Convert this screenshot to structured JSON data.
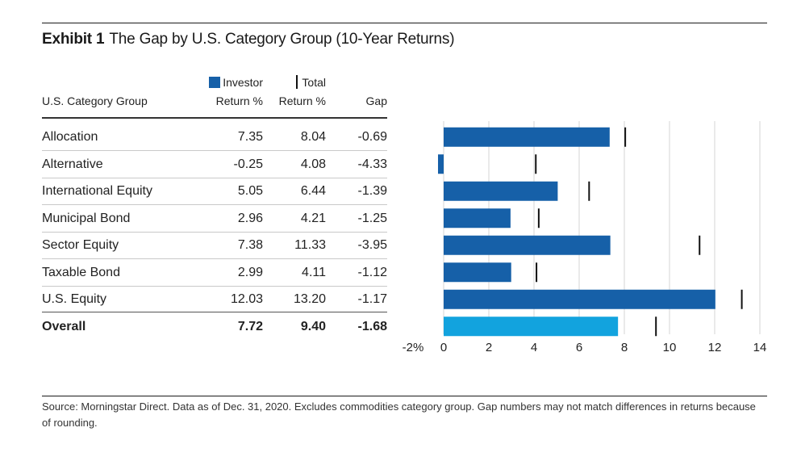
{
  "title": {
    "exhibit": "Exhibit 1",
    "text": "The Gap by U.S. Category Group (10-Year Returns)"
  },
  "columns": {
    "category": "U.S. Category Group",
    "investor_line1": "Investor",
    "investor_line2": "Return %",
    "total_line1": "Total",
    "total_line2": "Return %",
    "gap": "Gap"
  },
  "rows": [
    {
      "name": "Allocation",
      "investor": "7.35",
      "total": "8.04",
      "gap": "-0.69"
    },
    {
      "name": "Alternative",
      "investor": "-0.25",
      "total": "4.08",
      "gap": "-4.33"
    },
    {
      "name": "International Equity",
      "investor": "5.05",
      "total": "6.44",
      "gap": "-1.39"
    },
    {
      "name": "Municipal Bond",
      "investor": "2.96",
      "total": "4.21",
      "gap": "-1.25"
    },
    {
      "name": "Sector Equity",
      "investor": "7.38",
      "total": "11.33",
      "gap": "-3.95"
    },
    {
      "name": "Taxable Bond",
      "investor": "2.99",
      "total": "4.11",
      "gap": "-1.12"
    },
    {
      "name": "U.S. Equity",
      "investor": "12.03",
      "total": "13.20",
      "gap": "-1.17"
    },
    {
      "name": "Overall",
      "investor": "7.72",
      "total": "9.40",
      "gap": "-1.68"
    }
  ],
  "chart_data": {
    "type": "bar",
    "orientation": "horizontal",
    "categories": [
      "Allocation",
      "Alternative",
      "International Equity",
      "Municipal Bond",
      "Sector Equity",
      "Taxable Bond",
      "U.S. Equity",
      "Overall"
    ],
    "series": [
      {
        "name": "Investor Return %",
        "values": [
          7.35,
          -0.25,
          5.05,
          2.96,
          7.38,
          2.99,
          12.03,
          7.72
        ]
      },
      {
        "name": "Total Return %",
        "values": [
          8.04,
          4.08,
          6.44,
          4.21,
          11.33,
          4.11,
          13.2,
          9.4
        ]
      }
    ],
    "xlim": [
      -2,
      14
    ],
    "xticks": [
      "-2%",
      "0",
      "2",
      "4",
      "6",
      "8",
      "10",
      "12",
      "14"
    ],
    "grid": true,
    "colors": {
      "bar": "#1660a8",
      "overall_bar": "#12a3de",
      "marker": "#111111",
      "grid": "#d6d6d6"
    }
  },
  "source": "Source: Morningstar Direct. Data as of Dec. 31, 2020. Excludes commodities category group. Gap numbers may not match differences in returns because of rounding."
}
